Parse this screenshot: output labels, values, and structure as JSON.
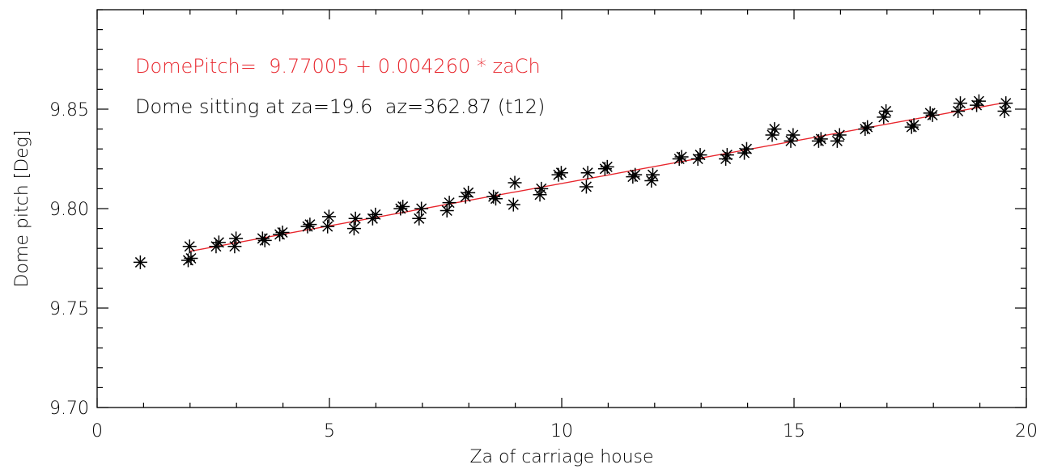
{
  "chart_data": {
    "type": "scatter",
    "xlabel": "Za of carriage house",
    "ylabel": "Dome pitch [Deg]",
    "xlim": [
      0,
      20
    ],
    "ylim": [
      9.7,
      9.9
    ],
    "x_ticks": [
      "0",
      "5",
      "10",
      "15",
      "20"
    ],
    "y_ticks": [
      "9.70",
      "9.75",
      "9.80",
      "9.85"
    ],
    "annotations": [
      {
        "text": "DomePitch=  9.77005 + 0.004260 * zaCh",
        "color": "#e8262d"
      },
      {
        "text": "Dome sitting at za=19.6  az=362.87 (t12)",
        "color": "#000000"
      }
    ],
    "fit_line": {
      "color": "#e8262d",
      "intercept": 9.77005,
      "slope": 0.00426,
      "x_range": [
        2.0,
        19.5
      ]
    },
    "series": [
      {
        "marker": "asterisk",
        "color": "#000000",
        "points": [
          [
            0.93,
            9.773
          ],
          [
            1.96,
            9.774
          ],
          [
            1.99,
            9.781
          ],
          [
            2.02,
            9.775
          ],
          [
            2.56,
            9.781
          ],
          [
            2.62,
            9.783
          ],
          [
            2.96,
            9.781
          ],
          [
            2.99,
            9.785
          ],
          [
            3.56,
            9.785
          ],
          [
            3.61,
            9.784
          ],
          [
            3.93,
            9.787
          ],
          [
            3.99,
            9.788
          ],
          [
            4.53,
            9.791
          ],
          [
            4.58,
            9.792
          ],
          [
            4.96,
            9.791
          ],
          [
            4.99,
            9.796
          ],
          [
            5.53,
            9.79
          ],
          [
            5.56,
            9.795
          ],
          [
            5.93,
            9.795
          ],
          [
            5.99,
            9.797
          ],
          [
            6.53,
            9.8
          ],
          [
            6.58,
            9.801
          ],
          [
            6.93,
            9.795
          ],
          [
            6.98,
            9.8
          ],
          [
            7.53,
            9.799
          ],
          [
            7.58,
            9.803
          ],
          [
            7.93,
            9.806
          ],
          [
            7.99,
            9.808
          ],
          [
            8.53,
            9.806
          ],
          [
            8.58,
            9.805
          ],
          [
            8.96,
            9.802
          ],
          [
            8.99,
            9.813
          ],
          [
            9.53,
            9.807
          ],
          [
            9.56,
            9.81
          ],
          [
            9.93,
            9.817
          ],
          [
            9.99,
            9.818
          ],
          [
            10.53,
            9.811
          ],
          [
            10.56,
            9.818
          ],
          [
            10.93,
            9.82
          ],
          [
            10.98,
            9.821
          ],
          [
            11.53,
            9.816
          ],
          [
            11.58,
            9.817
          ],
          [
            11.93,
            9.814
          ],
          [
            11.96,
            9.817
          ],
          [
            12.53,
            9.825
          ],
          [
            12.58,
            9.826
          ],
          [
            12.93,
            9.825
          ],
          [
            12.98,
            9.827
          ],
          [
            13.53,
            9.825
          ],
          [
            13.56,
            9.827
          ],
          [
            13.93,
            9.828
          ],
          [
            13.98,
            9.83
          ],
          [
            14.53,
            9.837
          ],
          [
            14.58,
            9.84
          ],
          [
            14.93,
            9.834
          ],
          [
            14.98,
            9.837
          ],
          [
            15.53,
            9.834
          ],
          [
            15.58,
            9.835
          ],
          [
            15.93,
            9.834
          ],
          [
            15.98,
            9.837
          ],
          [
            16.53,
            9.84
          ],
          [
            16.58,
            9.841
          ],
          [
            16.93,
            9.846
          ],
          [
            16.98,
            9.849
          ],
          [
            17.53,
            9.841
          ],
          [
            17.58,
            9.842
          ],
          [
            17.93,
            9.848
          ],
          [
            17.98,
            9.847
          ],
          [
            18.53,
            9.849
          ],
          [
            18.58,
            9.853
          ],
          [
            18.93,
            9.852
          ],
          [
            18.98,
            9.854
          ],
          [
            19.53,
            9.849
          ],
          [
            19.56,
            9.853
          ]
        ]
      }
    ]
  }
}
